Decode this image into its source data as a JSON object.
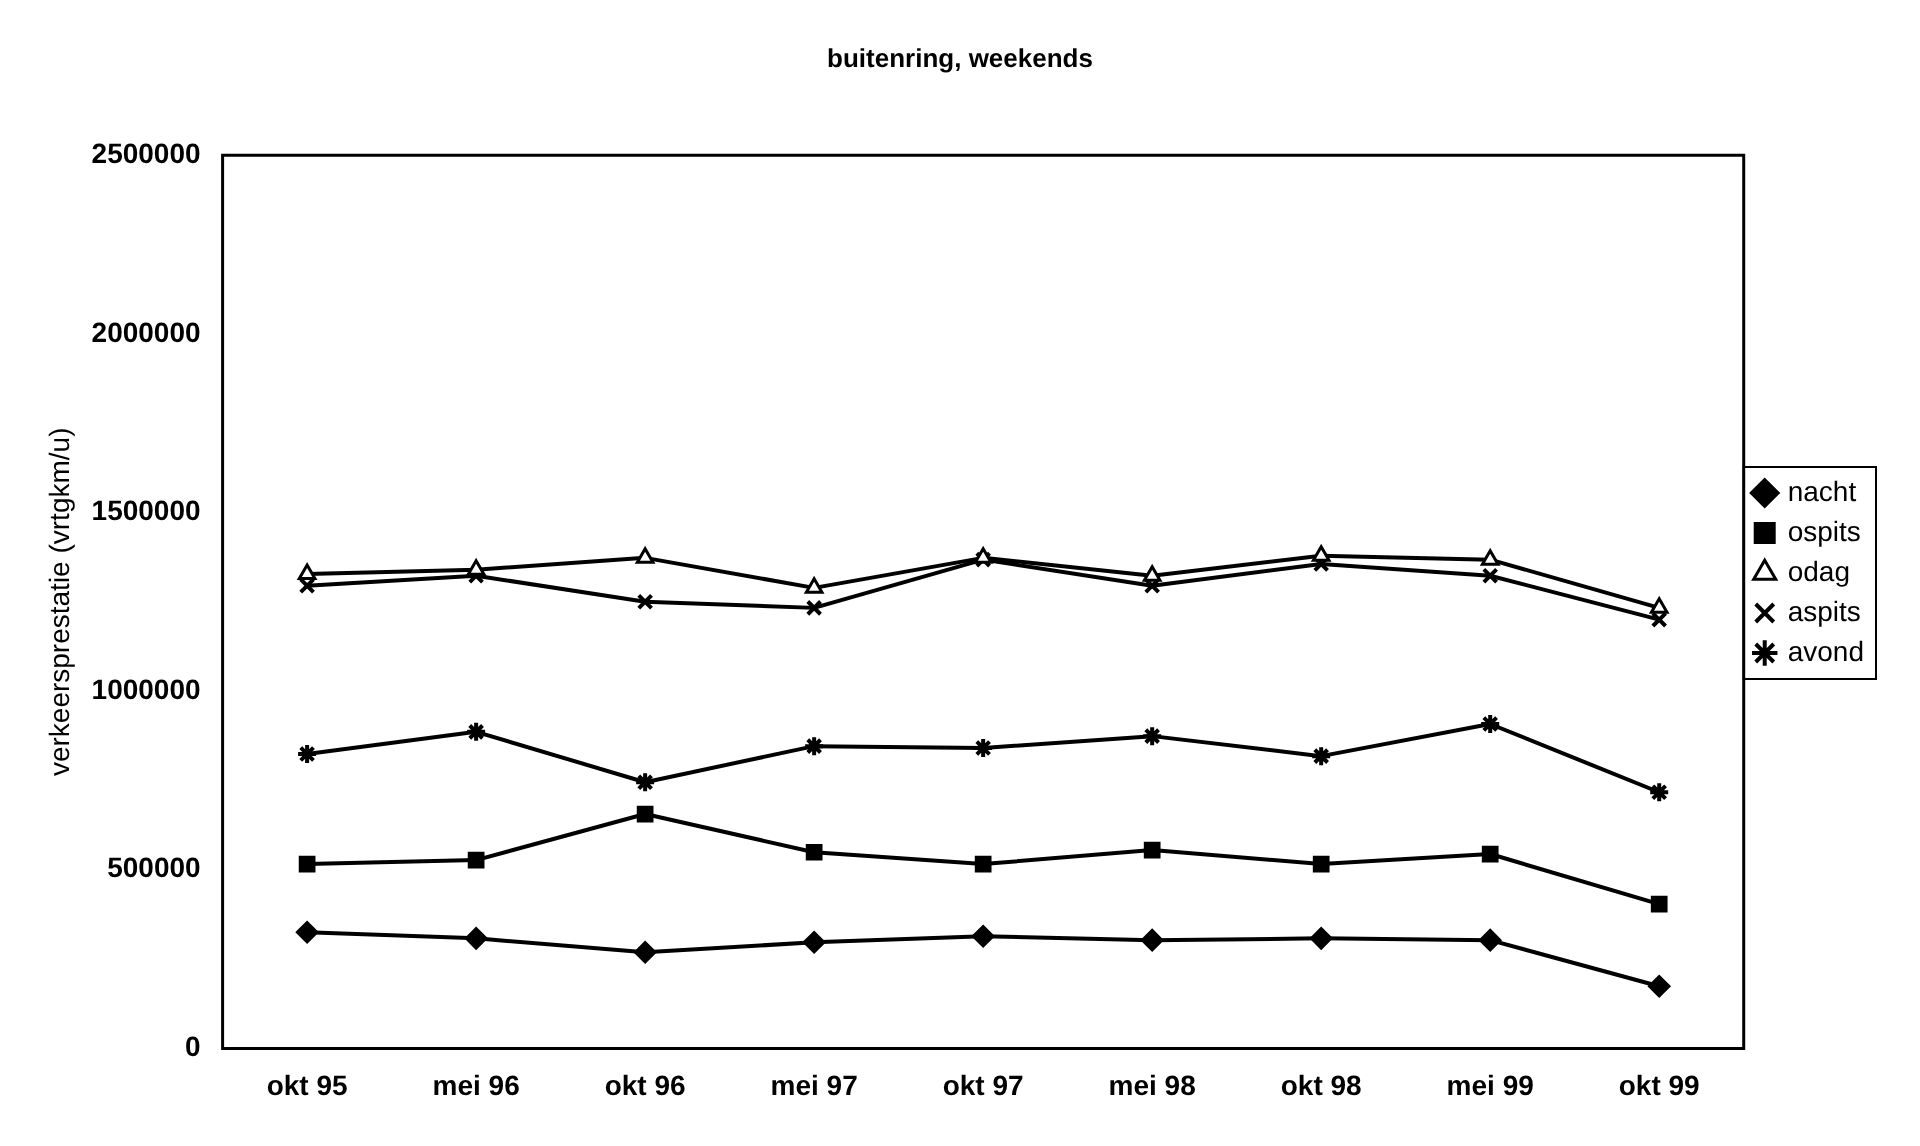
{
  "chart_data": {
    "type": "line",
    "title": "buitenring, weekends",
    "ylabel": "verkeersprestatie (vrtgkm/u)",
    "categories": [
      "okt 95",
      "mei 96",
      "okt 96",
      "mei 97",
      "okt 97",
      "mei 98",
      "okt 98",
      "mei 99",
      "okt 99"
    ],
    "series": [
      {
        "name": "nacht",
        "color": "#000000",
        "marker": "diamond",
        "values": [
          325000,
          308000,
          269000,
          297000,
          314000,
          303000,
          308000,
          303000,
          174000
        ]
      },
      {
        "name": "ospits",
        "color": "#000000",
        "marker": "square",
        "values": [
          516000,
          527000,
          656000,
          549000,
          516000,
          555000,
          516000,
          544000,
          404000
        ]
      },
      {
        "name": "odag",
        "color": "#000000",
        "marker": "triangle",
        "values": [
          1328000,
          1340000,
          1373000,
          1289000,
          1373000,
          1323000,
          1379000,
          1368000,
          1233000
        ]
      },
      {
        "name": "aspits",
        "color": "#000000",
        "marker": "cross",
        "values": [
          1295000,
          1323000,
          1250000,
          1233000,
          1368000,
          1295000,
          1356000,
          1323000,
          1200000
        ]
      },
      {
        "name": "avond",
        "color": "#000000",
        "marker": "cross",
        "values": [
          824000,
          886000,
          745000,
          846000,
          841000,
          874000,
          818000,
          908000,
          717000
        ]
      }
    ],
    "ylim": [
      0,
      2500000
    ],
    "yticks": [
      0,
      500000,
      1000000,
      1500000,
      2000000,
      2500000
    ],
    "grid": false,
    "legend": "right",
    "line_style": "solid"
  }
}
